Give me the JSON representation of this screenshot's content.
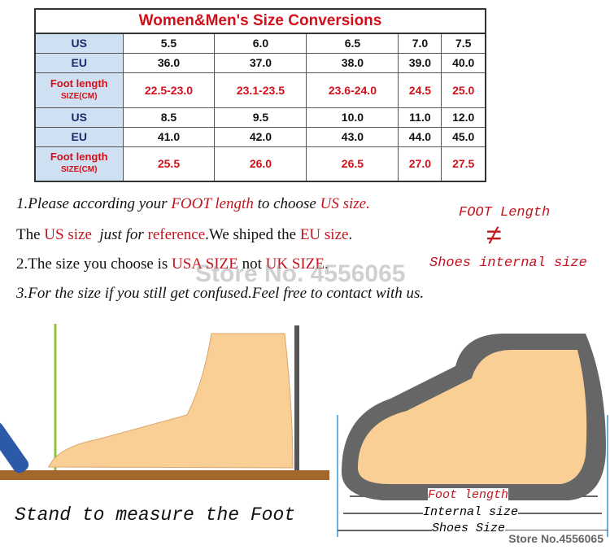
{
  "table": {
    "title": "Women&Men's Size Conversions",
    "groups": [
      {
        "us_label": "US",
        "us": [
          "5.5",
          "6.0",
          "6.5",
          "7.0",
          "7.5"
        ],
        "eu_label": "EU",
        "eu": [
          "36.0",
          "37.0",
          "38.0",
          "39.0",
          "40.0"
        ],
        "foot_label": "Foot length",
        "foot_unit": "SIZE(CM)",
        "foot": [
          "22.5-23.0",
          "23.1-23.5",
          "23.6-24.0",
          "24.5",
          "25.0"
        ]
      },
      {
        "us_label": "US",
        "us": [
          "8.5",
          "9.5",
          "10.0",
          "11.0",
          "12.0"
        ],
        "eu_label": "EU",
        "eu": [
          "41.0",
          "42.0",
          "43.0",
          "44.0",
          "45.0"
        ],
        "foot_label": "Foot length",
        "foot_unit": "SIZE(CM)",
        "foot": [
          "25.5",
          "26.0",
          "26.5",
          "27.0",
          "27.5"
        ]
      }
    ]
  },
  "notes": {
    "l1": [
      "1.Please according your ",
      "FOOT length",
      " to choose ",
      "US size."
    ],
    "l2": [
      "The ",
      "US size",
      " just for ",
      "reference",
      ".We shiped the ",
      "EU size",
      "."
    ],
    "l3": [
      "2.The size you choose is ",
      "USA SIZE",
      " not ",
      "UK SIZE",
      "."
    ],
    "l4": "3.For the size if you still get confused.Feel free to contact with us."
  },
  "side": {
    "top": "FOOT Length",
    "symbol": "≠",
    "bottom": "Shoes internal size"
  },
  "illustration": {
    "caption_left": "Stand to measure the Foot",
    "foot_length": "Foot length",
    "internal_size": "Internal size",
    "shoes_size": "Shoes Size"
  },
  "watermark": "Store No. 4556065",
  "store_label": "Store No.4556065"
}
